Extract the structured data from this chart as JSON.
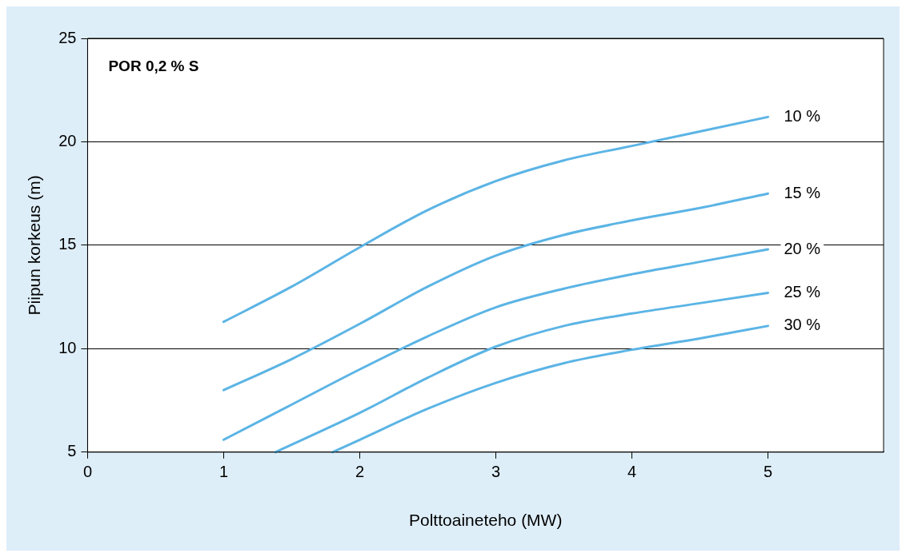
{
  "chart_data": {
    "type": "line",
    "xlabel": "Polttoaineteho (MW)",
    "ylabel": "Piipun korkeus (m)",
    "annotations": [
      "POR 0,2 % S"
    ],
    "xlim": [
      0,
      5.85
    ],
    "xticks": [
      0,
      1,
      2,
      3,
      4,
      5
    ],
    "ylim": [
      5,
      25
    ],
    "yticks": [
      5,
      10,
      15,
      20,
      25
    ],
    "grid": "y",
    "legend": false,
    "marker": "none",
    "line_style": "solid",
    "series": [
      {
        "name": "10 %",
        "color": "#5bb4e5",
        "x": [
          1,
          1.5,
          2,
          2.5,
          3,
          3.5,
          4,
          4.5,
          5
        ],
        "values": [
          11.3,
          13.0,
          14.9,
          16.7,
          18.1,
          19.1,
          19.8,
          20.5,
          21.2
        ]
      },
      {
        "name": "15 %",
        "color": "#5bb4e5",
        "x": [
          1,
          1.5,
          2,
          2.5,
          3,
          3.5,
          4,
          4.5,
          5
        ],
        "values": [
          8.0,
          9.5,
          11.2,
          13.0,
          14.5,
          15.5,
          16.2,
          16.8,
          17.5
        ]
      },
      {
        "name": "20 %",
        "color": "#5bb4e5",
        "x": [
          1,
          1.5,
          2,
          2.5,
          3,
          3.5,
          4,
          4.5,
          5
        ],
        "values": [
          5.6,
          7.3,
          9.0,
          10.6,
          12.0,
          12.9,
          13.6,
          14.2,
          14.8
        ]
      },
      {
        "name": "25 %",
        "color": "#5bb4e5",
        "x": [
          1.38,
          2,
          2.5,
          3,
          3.5,
          4,
          4.5,
          5
        ],
        "values": [
          5,
          6.9,
          8.6,
          10.1,
          11.1,
          11.7,
          12.2,
          12.7
        ]
      },
      {
        "name": "30 %",
        "color": "#5bb4e5",
        "x": [
          1.8,
          2,
          2.5,
          3,
          3.5,
          4,
          4.5,
          5
        ],
        "values": [
          5,
          5.6,
          7.1,
          8.35,
          9.3,
          9.95,
          10.5,
          11.1
        ]
      }
    ]
  }
}
